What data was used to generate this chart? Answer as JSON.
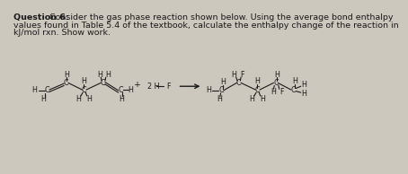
{
  "background_color": "#cdc8be",
  "text_color": "#1a1a1a",
  "font_size_header": 6.8,
  "font_size_mol": 5.8,
  "header_line1_bold": "Question 6:",
  "header_line1_rest": " Consider the gas phase reaction shown below. Using the average bond enthalpy",
  "header_line2": "values found in Table 5.4 of the textbook, calculate the enthalpy change of the reaction in",
  "header_line3": "kJ/mol rxn. Show work."
}
